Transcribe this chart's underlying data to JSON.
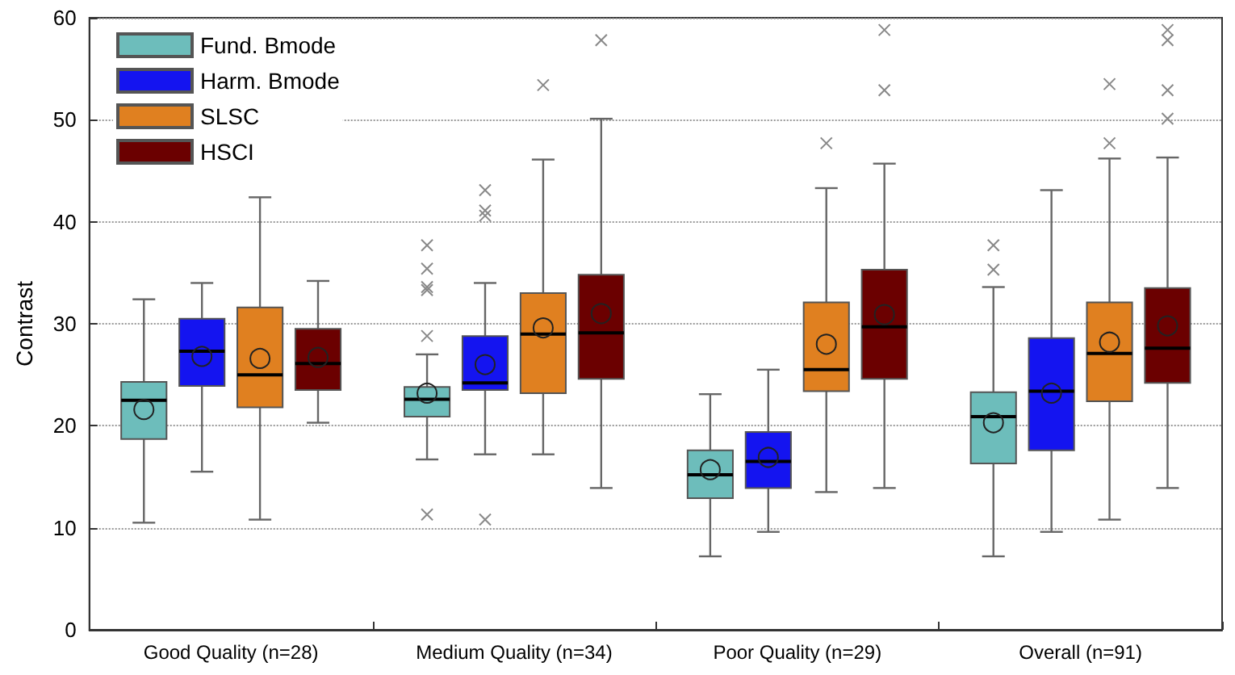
{
  "chart_data": {
    "type": "box",
    "ylabel": "Contrast",
    "categories": [
      "Good Quality (n=28)",
      "Medium Quality (n=34)",
      "Poor Quality (n=29)",
      "Overall (n=91)"
    ],
    "ylim": [
      0,
      60
    ],
    "yticks": [
      0,
      10,
      20,
      30,
      40,
      50,
      60
    ],
    "grid": "y",
    "legend": "top left",
    "series": [
      {
        "name": "Fund. Bmode",
        "color": "#6dbdbb",
        "boxes": [
          {
            "low": 10.5,
            "q1": 18.7,
            "median": 22.5,
            "q3": 24.3,
            "high": 32.4,
            "mean": 21.6
          },
          {
            "low": 16.7,
            "q1": 20.9,
            "median": 22.6,
            "q3": 23.8,
            "high": 27.0,
            "mean": 23.2,
            "outliers": [
              11.3,
              28.8,
              33.3,
              33.6,
              35.4,
              37.7
            ]
          },
          {
            "low": 7.2,
            "q1": 12.9,
            "median": 15.2,
            "q3": 17.6,
            "high": 23.1,
            "mean": 15.7
          },
          {
            "low": 7.2,
            "q1": 16.3,
            "median": 20.9,
            "q3": 23.3,
            "high": 33.6,
            "mean": 20.3,
            "outliers": [
              35.3,
              37.7
            ]
          }
        ]
      },
      {
        "name": "Harm. Bmode",
        "color": "#1414f0",
        "boxes": [
          {
            "low": 15.5,
            "q1": 23.9,
            "median": 27.3,
            "q3": 30.5,
            "high": 34.0,
            "mean": 26.8
          },
          {
            "low": 17.2,
            "q1": 23.5,
            "median": 24.2,
            "q3": 28.8,
            "high": 34.0,
            "mean": 26.0,
            "outliers": [
              10.8,
              40.6,
              41.1,
              43.1
            ]
          },
          {
            "low": 9.6,
            "q1": 13.9,
            "median": 16.5,
            "q3": 19.4,
            "high": 25.5,
            "mean": 16.9
          },
          {
            "low": 9.6,
            "q1": 17.6,
            "median": 23.4,
            "q3": 28.6,
            "high": 43.1,
            "mean": 23.2
          }
        ]
      },
      {
        "name": "SLSC",
        "color": "#e08020",
        "boxes": [
          {
            "low": 10.8,
            "q1": 21.8,
            "median": 25.0,
            "q3": 31.6,
            "high": 42.4,
            "mean": 26.6
          },
          {
            "low": 17.2,
            "q1": 23.2,
            "median": 29.0,
            "q3": 33.0,
            "high": 46.1,
            "mean": 29.6,
            "outliers": [
              53.4
            ]
          },
          {
            "low": 13.5,
            "q1": 23.4,
            "median": 25.5,
            "q3": 32.1,
            "high": 43.3,
            "mean": 28.0,
            "outliers": [
              47.7
            ]
          },
          {
            "low": 10.8,
            "q1": 22.4,
            "median": 27.1,
            "q3": 32.1,
            "high": 46.2,
            "mean": 28.2,
            "outliers": [
              47.7,
              53.5
            ]
          }
        ]
      },
      {
        "name": "HSCI",
        "color": "#6b0000",
        "boxes": [
          {
            "low": 20.3,
            "q1": 23.5,
            "median": 26.1,
            "q3": 29.5,
            "high": 34.2,
            "mean": 26.7
          },
          {
            "low": 13.9,
            "q1": 24.6,
            "median": 29.1,
            "q3": 34.8,
            "high": 50.1,
            "mean": 31.0,
            "outliers": [
              57.8
            ]
          },
          {
            "low": 13.9,
            "q1": 24.6,
            "median": 29.7,
            "q3": 35.3,
            "high": 45.7,
            "mean": 30.9,
            "outliers": [
              52.9,
              58.8
            ]
          },
          {
            "low": 13.9,
            "q1": 24.2,
            "median": 27.6,
            "q3": 33.5,
            "high": 46.3,
            "mean": 29.8,
            "outliers": [
              50.1,
              52.9,
              57.8,
              58.8
            ]
          }
        ]
      }
    ]
  }
}
